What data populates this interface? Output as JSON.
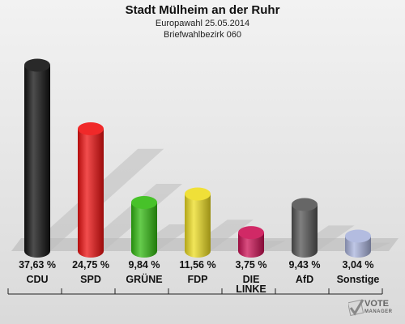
{
  "header": {
    "title": "Stadt Mülheim an der Ruhr",
    "subtitle": "Europawahl 25.05.2014",
    "district": "Briefwahlbezirk 060"
  },
  "chart_data": {
    "type": "bar",
    "categories": [
      "CDU",
      "SPD",
      "GRÜNE",
      "FDP",
      "DIE LINKE",
      "AfD",
      "Sonstige"
    ],
    "values": [
      37.63,
      24.75,
      9.84,
      11.56,
      3.75,
      9.43,
      3.04
    ],
    "value_labels": [
      "37,63 %",
      "24,75 %",
      "9,84 %",
      "11,56 %",
      "3,75 %",
      "9,43 %",
      "3,04 %"
    ],
    "category_labels": [
      [
        "CDU"
      ],
      [
        "SPD"
      ],
      [
        "GRÜNE"
      ],
      [
        "FDP"
      ],
      [
        "DIE",
        "LINKE"
      ],
      [
        "AfD"
      ],
      [
        "Sonstige"
      ]
    ],
    "colors": [
      "#111111",
      "#ee1111",
      "#33bb11",
      "#eedd22",
      "#cc1155",
      "#555555",
      "#aab4dd"
    ],
    "ylim": [
      0,
      40
    ],
    "grid": false,
    "legend": "none"
  },
  "logo": {
    "text": "VOTE",
    "subtext": "MANAGER"
  }
}
